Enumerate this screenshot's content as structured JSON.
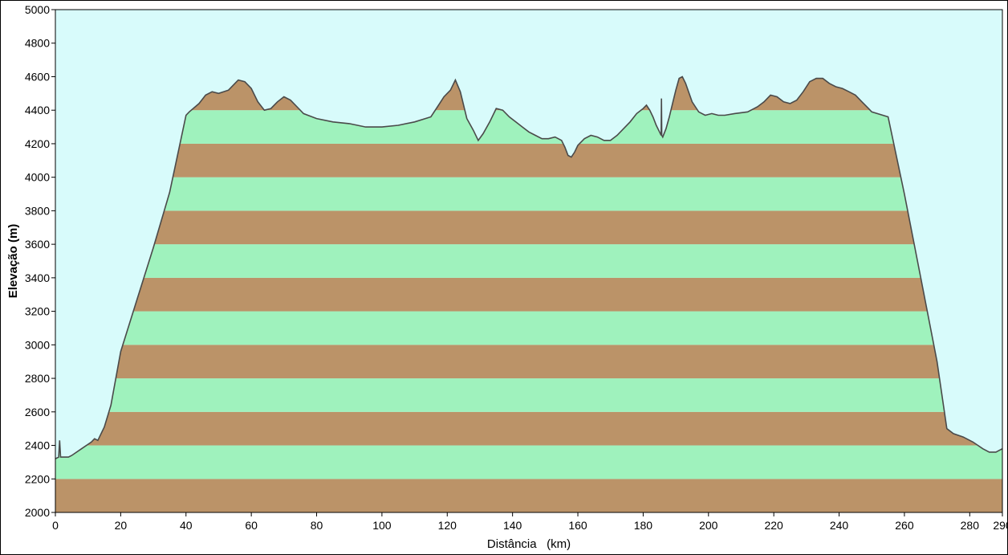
{
  "chart_data": {
    "type": "area",
    "xlabel": "Distância   (km)",
    "ylabel": "Elevação (m)",
    "xlim": [
      0,
      290
    ],
    "ylim": [
      2000,
      5000
    ],
    "x_ticks": [
      0,
      20,
      40,
      60,
      80,
      100,
      120,
      140,
      160,
      180,
      200,
      220,
      240,
      260,
      280,
      290
    ],
    "y_ticks": [
      2000,
      2200,
      2400,
      2600,
      2800,
      3000,
      3200,
      3400,
      3600,
      3800,
      4000,
      4200,
      4400,
      4600,
      4800,
      5000
    ],
    "band_size": 200,
    "grid": false,
    "colors": {
      "background": "#d8fbfb",
      "band_brown": "#bb9368",
      "band_green": "#9ff2bd",
      "profile_line": "#4a4a4a"
    },
    "series": [
      {
        "x": [
          0,
          1,
          1.3,
          1.6,
          4,
          5,
          8,
          11,
          12,
          13,
          15,
          17,
          20,
          25,
          30,
          35,
          40,
          41,
          44,
          46,
          48,
          50,
          53,
          55,
          56,
          58,
          60,
          62,
          64,
          66,
          68,
          70,
          72,
          74,
          76,
          80,
          85,
          90,
          95,
          100,
          105,
          110,
          115,
          117,
          119,
          121,
          122.5,
          124,
          126,
          128,
          129.5,
          131,
          133,
          135,
          137,
          139,
          141,
          143,
          145,
          147,
          149,
          151,
          153,
          155,
          156,
          157,
          158,
          159,
          160,
          162,
          164,
          166,
          168,
          170,
          172,
          174,
          176,
          178,
          180,
          181,
          182,
          183,
          184,
          185,
          185.5,
          185.6,
          185.7,
          186,
          187,
          188,
          189,
          190,
          191,
          192,
          193,
          195,
          197,
          199,
          201,
          203,
          205,
          208,
          212,
          215,
          217,
          219,
          221,
          223,
          225,
          227,
          229,
          231,
          233,
          235,
          237,
          239,
          241,
          243,
          245,
          247,
          249,
          250,
          255,
          260,
          265,
          270,
          273,
          275,
          278,
          281,
          284,
          286,
          288,
          289,
          290
        ],
        "y": [
          2320,
          2330,
          2430,
          2330,
          2330,
          2340,
          2380,
          2420,
          2440,
          2430,
          2510,
          2640,
          2960,
          3270,
          3580,
          3910,
          4370,
          4390,
          4440,
          4490,
          4510,
          4500,
          4520,
          4560,
          4580,
          4570,
          4530,
          4450,
          4400,
          4410,
          4450,
          4480,
          4460,
          4420,
          4380,
          4350,
          4330,
          4320,
          4300,
          4300,
          4310,
          4330,
          4360,
          4420,
          4480,
          4520,
          4580,
          4510,
          4350,
          4280,
          4220,
          4260,
          4330,
          4410,
          4400,
          4360,
          4330,
          4300,
          4270,
          4250,
          4230,
          4230,
          4240,
          4220,
          4180,
          4130,
          4120,
          4150,
          4190,
          4230,
          4250,
          4240,
          4220,
          4220,
          4250,
          4290,
          4330,
          4380,
          4410,
          4430,
          4400,
          4360,
          4310,
          4270,
          4250,
          4470,
          4250,
          4240,
          4290,
          4360,
          4440,
          4520,
          4590,
          4600,
          4560,
          4450,
          4390,
          4370,
          4380,
          4370,
          4370,
          4380,
          4390,
          4420,
          4450,
          4490,
          4480,
          4450,
          4440,
          4460,
          4510,
          4570,
          4590,
          4590,
          4560,
          4540,
          4530,
          4510,
          4490,
          4450,
          4410,
          4390,
          4360,
          3900,
          3400,
          2900,
          2500,
          2470,
          2450,
          2420,
          2380,
          2360,
          2360,
          2370,
          2380
        ]
      }
    ]
  }
}
